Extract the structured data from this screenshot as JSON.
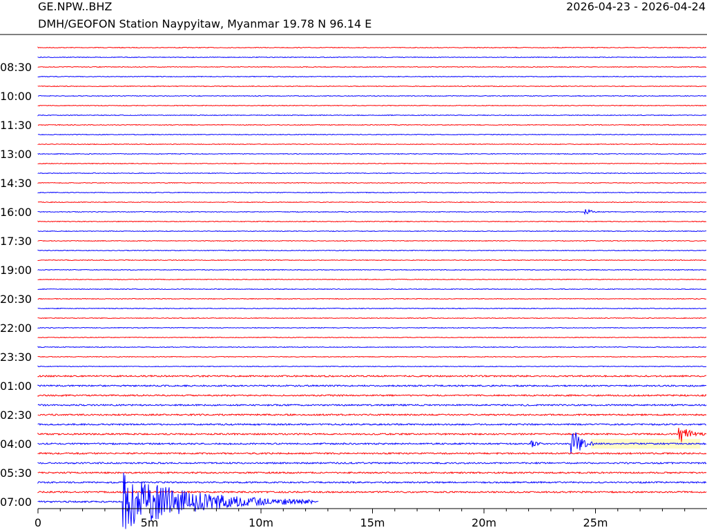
{
  "header": {
    "station_code": "GE.NPW..BHZ",
    "station_desc": "DMH/GEOFON Station Naypyitaw, Myanmar  19.78 N 96.14 E",
    "date_range": "2026-04-23 - 2026-04-24"
  },
  "colors": {
    "odd_trace": "#ff0000",
    "even_trace": "#0000ff",
    "highlight": "#fffcc8"
  },
  "chart_data": {
    "type": "line",
    "title": "",
    "xlabel": "",
    "ylabel": "",
    "xlim": [
      0,
      30
    ],
    "x_unit": "minutes",
    "trace_count": 48,
    "minutes_per_trace": 30,
    "x_ticks": [
      {
        "value": 0,
        "label": "0"
      },
      {
        "value": 5,
        "label": "5m"
      },
      {
        "value": 10,
        "label": "10m"
      },
      {
        "value": 15,
        "label": "15m"
      },
      {
        "value": 20,
        "label": "20m"
      },
      {
        "value": 25,
        "label": "25m"
      }
    ],
    "y_ticks": [
      {
        "trace": 2,
        "label": "08:30"
      },
      {
        "trace": 5,
        "label": "10:00"
      },
      {
        "trace": 8,
        "label": "11:30"
      },
      {
        "trace": 11,
        "label": "13:00"
      },
      {
        "trace": 14,
        "label": "14:30"
      },
      {
        "trace": 17,
        "label": "16:00"
      },
      {
        "trace": 20,
        "label": "17:30"
      },
      {
        "trace": 23,
        "label": "19:00"
      },
      {
        "trace": 26,
        "label": "20:30"
      },
      {
        "trace": 29,
        "label": "22:00"
      },
      {
        "trace": 32,
        "label": "23:30"
      },
      {
        "trace": 35,
        "label": "01:00"
      },
      {
        "trace": 38,
        "label": "02:30"
      },
      {
        "trace": 41,
        "label": "04:00"
      },
      {
        "trace": 44,
        "label": "05:30"
      },
      {
        "trace": 47,
        "label": "07:00"
      }
    ],
    "events": [
      {
        "trace": 17,
        "minute": 24.5,
        "amplitude": 8,
        "duration": 0.7
      },
      {
        "trace": 41,
        "minute": 22.1,
        "amplitude": 9,
        "duration": 0.5
      },
      {
        "trace": 41,
        "minute": 23.9,
        "amplitude": 30,
        "duration": 1.0
      },
      {
        "trace": 40,
        "minute": 28.7,
        "amplitude": 16,
        "duration": 1.2
      },
      {
        "trace": 47,
        "minute": 3.8,
        "amplitude": 42,
        "duration": 8.5
      }
    ],
    "highlight_band": {
      "trace": 41,
      "from_minute": 24.8,
      "to_minute": 29.7
    },
    "trace_end": {
      "trace": 47,
      "end_minute": 12.6
    }
  }
}
